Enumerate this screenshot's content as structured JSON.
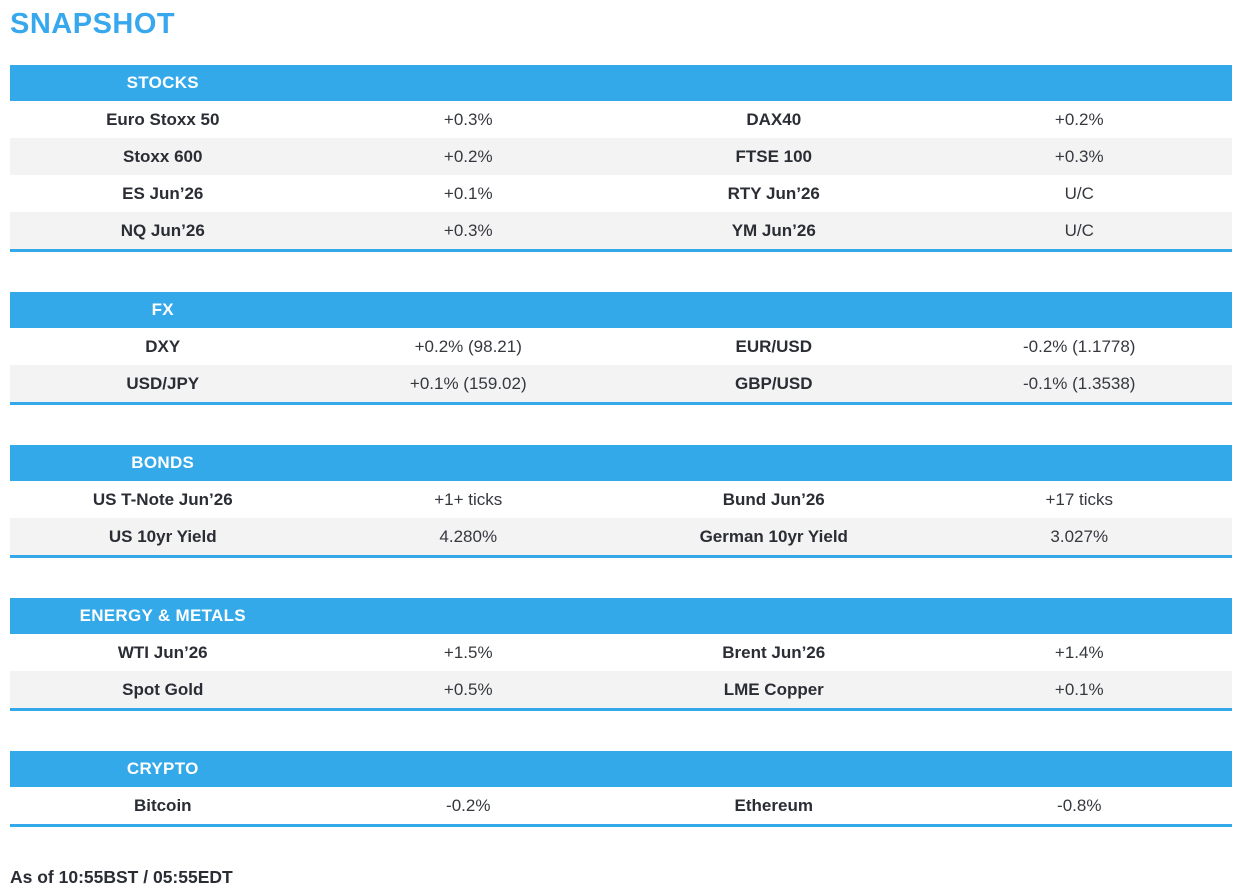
{
  "page": {
    "title": "SNAPSHOT",
    "footer": "As of 10:55BST / 05:55EDT"
  },
  "colors": {
    "accent_blue": "#33A9EA",
    "row_alt_gray": "#F3F3F3",
    "text_dark": "#2B2D35",
    "header_text": "#FFFFFF"
  },
  "sections": [
    {
      "header": "STOCKS",
      "rows": [
        [
          "Euro Stoxx 50",
          "+0.3%",
          "DAX40",
          "+0.2%"
        ],
        [
          "Stoxx 600",
          "+0.2%",
          "FTSE 100",
          "+0.3%"
        ],
        [
          "ES Jun’26",
          "+0.1%",
          "RTY Jun’26",
          "U/C"
        ],
        [
          "NQ Jun’26",
          "+0.3%",
          "YM Jun’26",
          "U/C"
        ]
      ]
    },
    {
      "header": "FX",
      "rows": [
        [
          "DXY",
          "+0.2% (98.21)",
          "EUR/USD",
          "-0.2% (1.1778)"
        ],
        [
          "USD/JPY",
          "+0.1% (159.02)",
          "GBP/USD",
          "-0.1% (1.3538)"
        ]
      ]
    },
    {
      "header": "BONDS",
      "rows": [
        [
          "US T-Note Jun’26",
          "+1+ ticks",
          "Bund Jun’26",
          "+17 ticks"
        ],
        [
          "US 10yr Yield",
          "4.280%",
          "German 10yr Yield",
          "3.027%"
        ]
      ]
    },
    {
      "header": "ENERGY & METALS",
      "rows": [
        [
          "WTI Jun’26",
          "+1.5%",
          "Brent Jun’26",
          "+1.4%"
        ],
        [
          "Spot Gold",
          "+0.5%",
          "LME Copper",
          "+0.1%"
        ]
      ]
    },
    {
      "header": "CRYPTO",
      "rows": [
        [
          "Bitcoin",
          "-0.2%",
          "Ethereum",
          "-0.8%"
        ]
      ]
    }
  ]
}
